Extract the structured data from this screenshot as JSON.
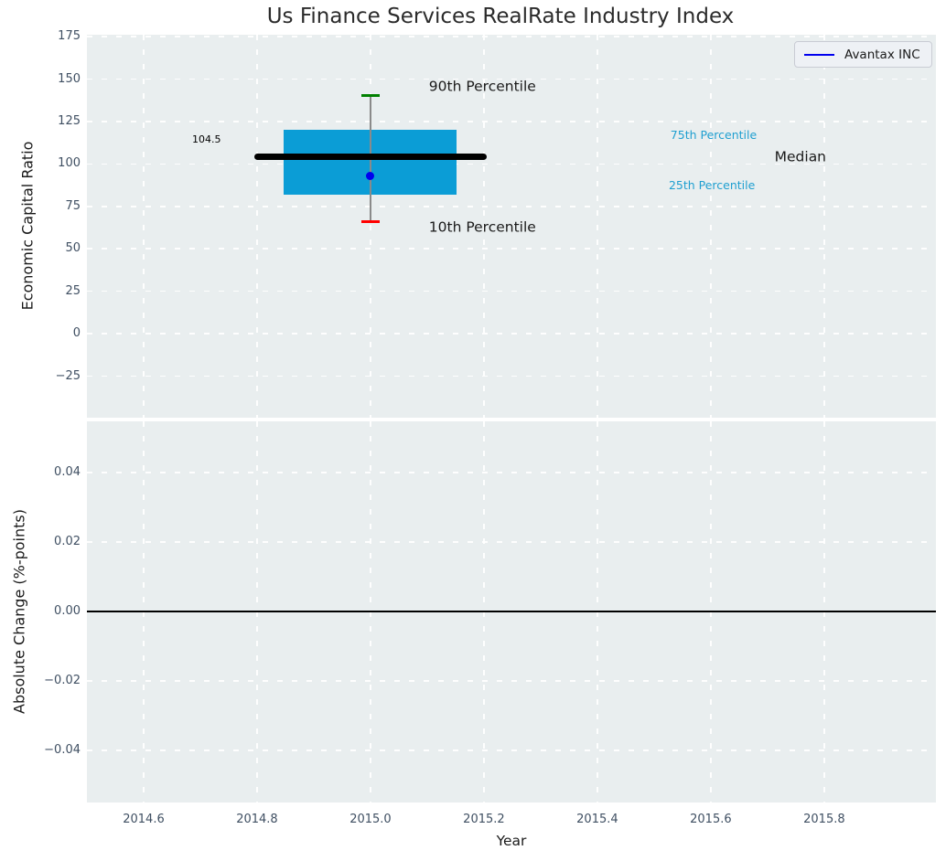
{
  "title": "Us Finance Services RealRate Industry Index",
  "legend": {
    "label": "Avantax INC"
  },
  "chart_data": {
    "type": "box",
    "title": "Us Finance Services RealRate Industry Index",
    "xlabel": "Year",
    "grid": "white dashed on light-gray axes background",
    "legend_position": "upper right",
    "xlim": [
      2014.5,
      2015.997
    ],
    "xticks": [
      {
        "v": 2014.6,
        "label": "2014.6"
      },
      {
        "v": 2014.8,
        "label": "2014.8"
      },
      {
        "v": 2015.0,
        "label": "2015.0"
      },
      {
        "v": 2015.2,
        "label": "2015.2"
      },
      {
        "v": 2015.4,
        "label": "2015.4"
      },
      {
        "v": 2015.6,
        "label": "2015.6"
      },
      {
        "v": 2015.8,
        "label": "2015.8"
      }
    ],
    "top_panel": {
      "ylabel": "Economic Capital Ratio",
      "ylim": [
        -49.5,
        176.2
      ],
      "yticks": [
        {
          "v": 175,
          "label": "175"
        },
        {
          "v": 150,
          "label": "150"
        },
        {
          "v": 125,
          "label": "125"
        },
        {
          "v": 100,
          "label": "100"
        },
        {
          "v": 75,
          "label": "75"
        },
        {
          "v": 50,
          "label": "50"
        },
        {
          "v": 25,
          "label": "25"
        },
        {
          "v": 0,
          "label": "0"
        },
        {
          "v": -25,
          "label": "−25"
        }
      ],
      "box": {
        "x": 2015.0,
        "p90": 140.5,
        "p75": 120,
        "median": 104.5,
        "company_value": 93,
        "p25": 82,
        "p10": 66,
        "box_half_width": 0.1525,
        "median_half_width": 0.205,
        "cap_half_width": 0.0165
      },
      "annotations": [
        {
          "id": "90th-percentile",
          "text": "90th Percentile",
          "x": 2015.103,
          "y": 145.5,
          "align": "left",
          "color": "#1a1a1a",
          "size": 15.5
        },
        {
          "id": "10th-percentile",
          "text": "10th Percentile",
          "x": 2015.103,
          "y": 62.5,
          "align": "left",
          "color": "#1a1a1a",
          "size": 15.5
        },
        {
          "id": "median-value",
          "text": "104.5",
          "x": 2014.711,
          "y": 114,
          "align": "center",
          "color": "#000000",
          "size": 11
        },
        {
          "id": "75th-percentile",
          "text": "75th Percentile",
          "x": 2015.605,
          "y": 117,
          "align": "center",
          "color": "#1f9fd0",
          "size": 12.5
        },
        {
          "id": "25th-percentile",
          "text": "25th Percentile",
          "x": 2015.602,
          "y": 87.5,
          "align": "center",
          "color": "#1f9fd0",
          "size": 12.5
        },
        {
          "id": "median-label",
          "text": "Median",
          "x": 2015.758,
          "y": 104,
          "align": "center",
          "color": "#1a1a1a",
          "size": 15.5
        }
      ]
    },
    "bottom_panel": {
      "ylabel": "Absolute Change (%-points)",
      "ylim": [
        -0.055,
        0.0547
      ],
      "yticks": [
        {
          "v": 0.04,
          "label": "0.04"
        },
        {
          "v": 0.02,
          "label": "0.02"
        },
        {
          "v": 0.0,
          "label": "0.00"
        },
        {
          "v": -0.02,
          "label": "−0.02"
        },
        {
          "v": -0.04,
          "label": "−0.04"
        }
      ],
      "zero_line": 0.0,
      "series": []
    },
    "colors": {
      "axes_bg": "#e9eeef",
      "grid": "#ffffff",
      "tick_label": "#3f4f62",
      "box_fill": "#0b9dd6",
      "median_line": "#000000",
      "whisker": "#8a8a8a",
      "cap_high": "#008000",
      "cap_low": "#ff0000",
      "marker": "#0000ee",
      "legend_line": "#0000ee",
      "zero_line": "#000000",
      "cyan_text": "#1f9fd0"
    }
  }
}
